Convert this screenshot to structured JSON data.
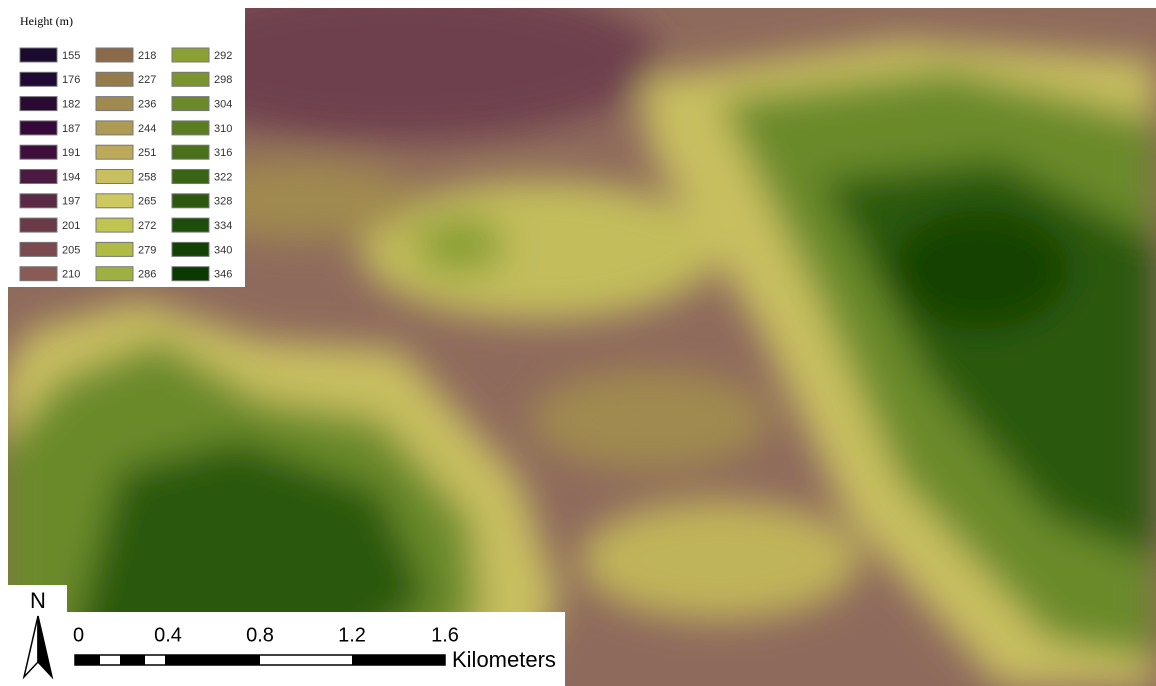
{
  "legend": {
    "title": "Height (m)",
    "entries": [
      {
        "value": 155,
        "color": "#1a0a2e"
      },
      {
        "value": 176,
        "color": "#1f0a35"
      },
      {
        "value": 182,
        "color": "#2a0a33"
      },
      {
        "value": 187,
        "color": "#350a3a"
      },
      {
        "value": 191,
        "color": "#3d0f3a"
      },
      {
        "value": 194,
        "color": "#4a1a40"
      },
      {
        "value": 197,
        "color": "#5a2a45"
      },
      {
        "value": 201,
        "color": "#6a3a48"
      },
      {
        "value": 205,
        "color": "#7a4a4e"
      },
      {
        "value": 210,
        "color": "#8a5a55"
      },
      {
        "value": 218,
        "color": "#8a6a4a"
      },
      {
        "value": 227,
        "color": "#957a4a"
      },
      {
        "value": 236,
        "color": "#a08a50"
      },
      {
        "value": 244,
        "color": "#ad9a55"
      },
      {
        "value": 251,
        "color": "#bcaa5a"
      },
      {
        "value": 258,
        "color": "#c8bf60"
      },
      {
        "value": 265,
        "color": "#cdc960"
      },
      {
        "value": 272,
        "color": "#c0c450"
      },
      {
        "value": 279,
        "color": "#b0bb45"
      },
      {
        "value": 286,
        "color": "#9eb040"
      },
      {
        "value": 292,
        "color": "#8aa035"
      },
      {
        "value": 298,
        "color": "#7a9530"
      },
      {
        "value": 304,
        "color": "#6a8a2a"
      },
      {
        "value": 310,
        "color": "#5a7d22"
      },
      {
        "value": 316,
        "color": "#4a701c"
      },
      {
        "value": 322,
        "color": "#3a6415"
      },
      {
        "value": 328,
        "color": "#2c5810"
      },
      {
        "value": 334,
        "color": "#1e4c0a"
      },
      {
        "value": 340,
        "color": "#144205"
      },
      {
        "value": 346,
        "color": "#0a3a02"
      }
    ]
  },
  "north_arrow": {
    "label": "N"
  },
  "scale_bar": {
    "labels": [
      "0",
      "0.4",
      "0.8",
      "1.2",
      "1.6"
    ],
    "unit": "Kilometers"
  }
}
